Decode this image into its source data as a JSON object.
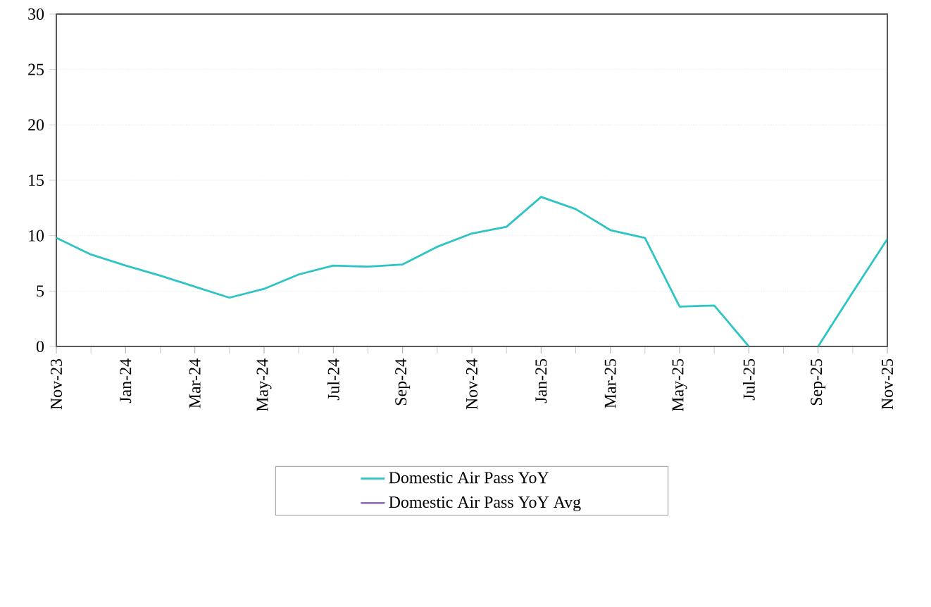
{
  "chart_data": {
    "type": "line",
    "categories": [
      "Nov-23",
      null,
      "Jan-24",
      null,
      "Mar-24",
      null,
      "May-24",
      null,
      "Jul-24",
      null,
      "Sep-24",
      null,
      "Nov-24",
      null,
      "Jan-25",
      null,
      "Mar-25",
      null,
      "May-25",
      null,
      "Jul-25",
      null,
      "Sep-25",
      null,
      "Nov-25"
    ],
    "series": [
      {
        "name": "Domestic Air Pass YoY",
        "color": "#2ec4c6",
        "values": [
          9.8,
          8.3,
          7.3,
          6.4,
          5.4,
          4.4,
          5.2,
          6.5,
          7.3,
          7.2,
          7.4,
          9.0,
          10.2,
          10.8,
          13.5,
          12.4,
          10.5,
          9.8,
          3.6,
          3.7,
          0,
          null,
          0,
          4.9,
          9.7
        ]
      },
      {
        "name": "Domestic Air Pass YoY Avg",
        "color": "#9b6fc0",
        "values": [
          null,
          null,
          null,
          null,
          null,
          null,
          null,
          null,
          null,
          null,
          null,
          null,
          null,
          null,
          null,
          null,
          null,
          null,
          null,
          null,
          null,
          null,
          null,
          null,
          null
        ]
      }
    ],
    "ylim": [
      0,
      30
    ],
    "yticks": [
      0,
      5,
      10,
      15,
      20,
      25,
      30
    ],
    "grid": "y",
    "legend": "bottom",
    "marker": "none",
    "line_style": "solid"
  }
}
